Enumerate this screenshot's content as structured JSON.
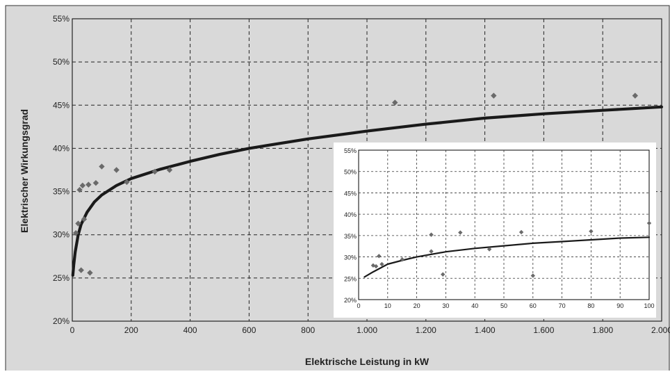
{
  "chart_data": [
    {
      "id": "main",
      "type": "scatter",
      "xlabel": "Elektrische Leistung in kW",
      "ylabel": "Elektrischer Wirkungsgrad",
      "xlim": [
        0,
        2000
      ],
      "ylim": [
        20,
        55
      ],
      "x_ticks": [
        0,
        200,
        400,
        600,
        800,
        1000,
        1200,
        1400,
        1600,
        1800,
        2000
      ],
      "x_tick_labels": [
        "0",
        "200",
        "400",
        "600",
        "800",
        "1.000",
        "1.200",
        "1.400",
        "1.600",
        "1.800",
        "2.000"
      ],
      "y_ticks": [
        20,
        25,
        30,
        35,
        40,
        45,
        50,
        55
      ],
      "y_tick_labels": [
        "20%",
        "25%",
        "30%",
        "35%",
        "40%",
        "45%",
        "50%",
        "55%"
      ],
      "grid": true,
      "series": [
        {
          "type": "scatter",
          "color": "#6a6a6a",
          "points": [
            [
              12,
              30.2
            ],
            [
              20,
              31.3
            ],
            [
              25,
              35.2
            ],
            [
              35,
              35.7
            ],
            [
              40,
              31.8
            ],
            [
              30,
              25.9
            ],
            [
              55,
              35.8
            ],
            [
              60,
              25.6
            ],
            [
              80,
              36.0
            ],
            [
              100,
              37.9
            ],
            [
              150,
              37.5
            ],
            [
              185,
              36.1
            ],
            [
              280,
              37.3
            ],
            [
              330,
              37.5
            ],
            [
              1095,
              45.3
            ],
            [
              1430,
              46.1
            ],
            [
              1910,
              46.1
            ]
          ]
        },
        {
          "type": "line",
          "color": "#1a1a1a",
          "points": [
            [
              2,
              25.3
            ],
            [
              5,
              26.5
            ],
            [
              10,
              28.0
            ],
            [
              20,
              30.0
            ],
            [
              30,
              31.2
            ],
            [
              50,
              32.6
            ],
            [
              75,
              33.8
            ],
            [
              100,
              34.6
            ],
            [
              150,
              35.7
            ],
            [
              200,
              36.5
            ],
            [
              300,
              37.6
            ],
            [
              400,
              38.5
            ],
            [
              500,
              39.3
            ],
            [
              600,
              40.0
            ],
            [
              800,
              41.1
            ],
            [
              1000,
              42.0
            ],
            [
              1200,
              42.8
            ],
            [
              1400,
              43.5
            ],
            [
              1600,
              44.0
            ],
            [
              1800,
              44.4
            ],
            [
              2000,
              44.8
            ]
          ]
        }
      ]
    },
    {
      "id": "inset",
      "type": "scatter",
      "xlim": [
        0,
        100
      ],
      "ylim": [
        20,
        55
      ],
      "x_ticks": [
        0,
        10,
        20,
        30,
        40,
        50,
        60,
        70,
        80,
        90,
        100
      ],
      "x_tick_labels": [
        "0",
        "10",
        "20",
        "30",
        "40",
        "50",
        "60",
        "70",
        "80",
        "90",
        "100"
      ],
      "y_ticks": [
        20,
        25,
        30,
        35,
        40,
        45,
        50,
        55
      ],
      "y_tick_labels": [
        "20%",
        "25%",
        "30%",
        "35%",
        "40%",
        "45%",
        "50%",
        "55%"
      ],
      "grid": true,
      "series": [
        {
          "type": "scatter",
          "color": "#6a6a6a",
          "points": [
            [
              5,
              28.0
            ],
            [
              6,
              27.8
            ],
            [
              7,
              30.2
            ],
            [
              8,
              28.3
            ],
            [
              15,
              29.4
            ],
            [
              25,
              31.3
            ],
            [
              25,
              35.2
            ],
            [
              29,
              25.9
            ],
            [
              35,
              35.7
            ],
            [
              45,
              31.8
            ],
            [
              56,
              35.8
            ],
            [
              60,
              25.6
            ],
            [
              80,
              36.0
            ],
            [
              100,
              37.9
            ]
          ]
        },
        {
          "type": "line",
          "color": "#1a1a1a",
          "points": [
            [
              2,
              25.3
            ],
            [
              5,
              26.5
            ],
            [
              10,
              28.3
            ],
            [
              15,
              29.2
            ],
            [
              20,
              30.0
            ],
            [
              30,
              31.2
            ],
            [
              40,
              32.0
            ],
            [
              50,
              32.6
            ],
            [
              60,
              33.2
            ],
            [
              70,
              33.6
            ],
            [
              80,
              34.0
            ],
            [
              90,
              34.4
            ],
            [
              100,
              34.6
            ]
          ]
        }
      ]
    }
  ]
}
